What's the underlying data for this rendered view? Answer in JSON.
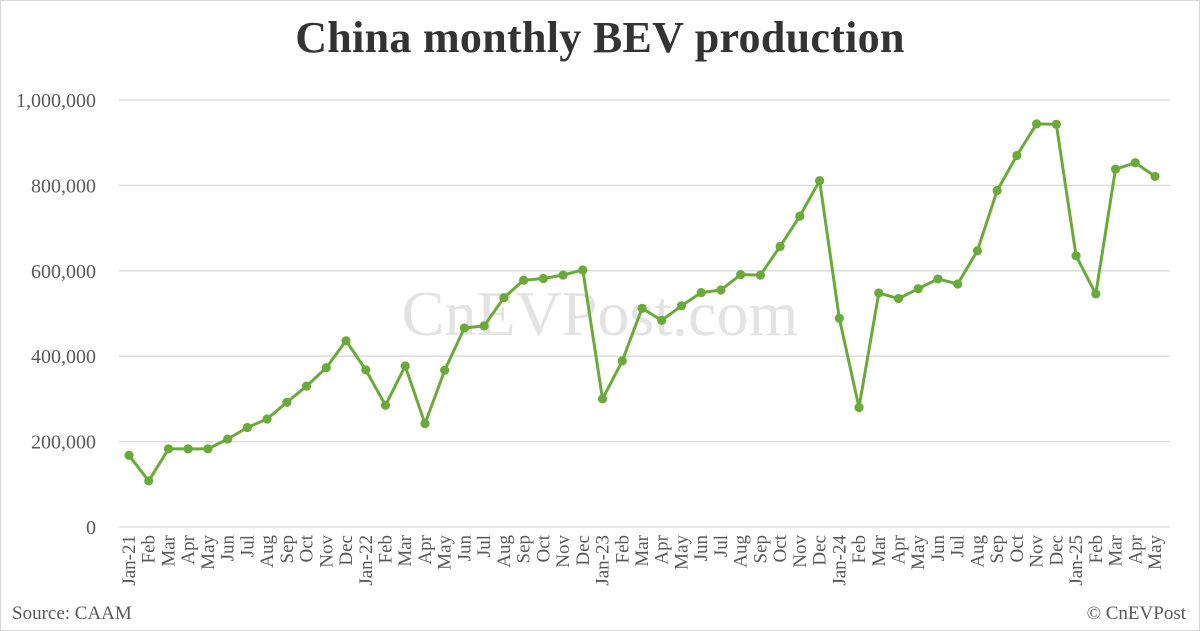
{
  "header": {
    "title": "China monthly BEV production"
  },
  "footer": {
    "source": "Source: CAAM",
    "copyright": "© CnEVPost"
  },
  "watermark": "CnEVPost.com",
  "colors": {
    "line": "#6aaa3a",
    "grid": "#d9d9d9",
    "text": "#595959",
    "title": "#333333",
    "watermark": "#e3e3e3"
  },
  "chart_data": {
    "type": "line",
    "title": "China monthly BEV production",
    "xlabel": "",
    "ylabel": "",
    "ylim": [
      0,
      1000000
    ],
    "yticks": [
      0,
      200000,
      400000,
      600000,
      800000,
      1000000
    ],
    "ytick_labels": [
      "0",
      "200,000",
      "400,000",
      "600,000",
      "800,000",
      "1,000,000"
    ],
    "grid": true,
    "legend": null,
    "categories": [
      "Jan-21",
      "Feb",
      "Mar",
      "Apr",
      "May",
      "Jun",
      "Jul",
      "Aug",
      "Sep",
      "Oct",
      "Nov",
      "Dec",
      "Jan-22",
      "Feb",
      "Mar",
      "Apr",
      "May",
      "Jun",
      "Jul",
      "Aug",
      "Sep",
      "Oct",
      "Nov",
      "Dec",
      "Jan-23",
      "Feb",
      "Mar",
      "Apr",
      "May",
      "Jun",
      "Jul",
      "Aug",
      "Sep",
      "Oct",
      "Nov",
      "Dec",
      "Jan-24",
      "Feb",
      "Mar",
      "Apr",
      "May",
      "Jun",
      "Jul",
      "Aug",
      "Sep",
      "Oct",
      "Nov",
      "Dec",
      "Jan-25",
      "Feb",
      "Mar",
      "Apr",
      "May"
    ],
    "series": [
      {
        "name": "BEV production",
        "values": [
          168000,
          108000,
          183000,
          183000,
          183000,
          206000,
          233000,
          253000,
          292000,
          330000,
          373000,
          436000,
          368000,
          285000,
          377000,
          242000,
          367000,
          466000,
          471000,
          537000,
          578000,
          582000,
          590000,
          602000,
          300000,
          389000,
          512000,
          484000,
          518000,
          549000,
          555000,
          591000,
          590000,
          657000,
          728000,
          811000,
          489000,
          280000,
          548000,
          535000,
          558000,
          581000,
          569000,
          647000,
          788000,
          870000,
          944000,
          943000,
          635000,
          546000,
          838000,
          853000,
          821000
        ]
      }
    ],
    "annotations": [
      "CnEVPost.com (watermark)",
      "Source: CAAM",
      "© CnEVPost"
    ]
  }
}
